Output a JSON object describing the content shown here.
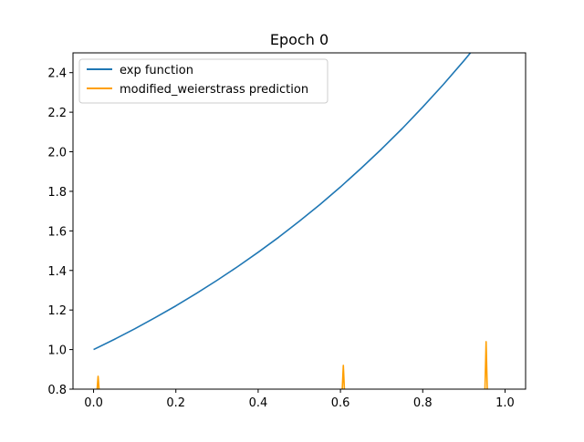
{
  "chart_data": {
    "type": "line",
    "title": "Epoch 0",
    "xlabel": "",
    "ylabel": "",
    "xlim": [
      -0.05,
      1.05
    ],
    "ylim": [
      0.8,
      2.5
    ],
    "xticks": [
      0.0,
      0.2,
      0.4,
      0.6,
      0.8,
      1.0
    ],
    "xtick_labels": [
      "0.0",
      "0.2",
      "0.4",
      "0.6",
      "0.8",
      "1.0"
    ],
    "yticks": [
      0.8,
      1.0,
      1.2,
      1.4,
      1.6,
      1.8,
      2.0,
      2.2,
      2.4
    ],
    "ytick_labels": [
      "0.8",
      "1.0",
      "1.2",
      "1.4",
      "1.6",
      "1.8",
      "2.0",
      "2.2",
      "2.4"
    ],
    "grid": false,
    "legend_position": "upper-left",
    "series": [
      {
        "name": "exp function",
        "color": "#1f77b4",
        "x": [
          0.0,
          0.05,
          0.1,
          0.15,
          0.2,
          0.25,
          0.3,
          0.35,
          0.4,
          0.45,
          0.5,
          0.55,
          0.6,
          0.65,
          0.7,
          0.75,
          0.8,
          0.85,
          0.9,
          0.95,
          1.0
        ],
        "y": [
          1.0,
          1.051,
          1.105,
          1.162,
          1.221,
          1.284,
          1.35,
          1.419,
          1.492,
          1.568,
          1.649,
          1.733,
          1.822,
          1.916,
          2.014,
          2.117,
          2.226,
          2.34,
          2.46,
          2.586,
          2.718
        ]
      },
      {
        "name": "modified_weierstrass prediction",
        "color": "#ff9f00",
        "x": [
          0.008,
          0.011,
          0.014,
          0.604,
          0.607,
          0.61,
          0.951,
          0.954,
          0.957
        ],
        "y": [
          0.78,
          0.865,
          0.78,
          0.78,
          0.92,
          0.78,
          0.78,
          1.04,
          0.78
        ]
      }
    ]
  }
}
